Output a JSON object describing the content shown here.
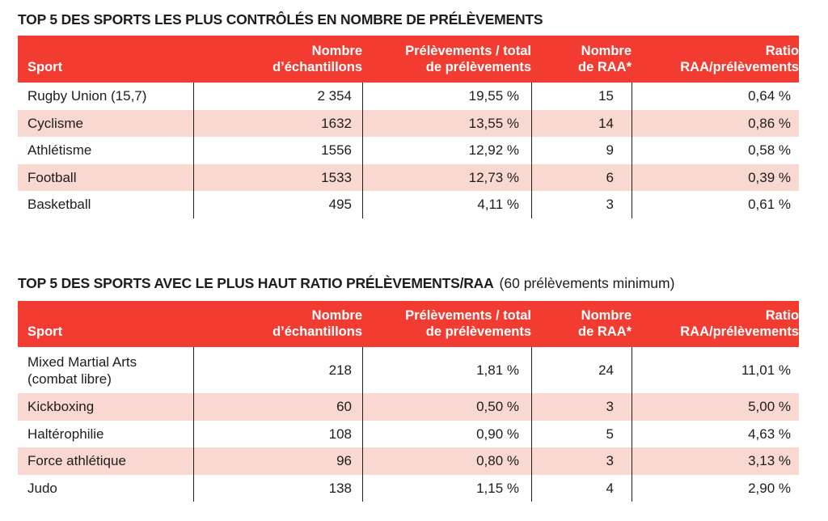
{
  "colors": {
    "header_red": "#f23c31",
    "stripe_pink": "#f9d8d1",
    "text": "#1d1d1b"
  },
  "table1": {
    "title": "TOP 5 DES SPORTS LES PLUS CONTRÔLÉS EN NOMBRE DE PRÉLÈVEMENTS",
    "headers": [
      "Sport",
      "Nombre\nd’échantillons",
      "Prélèvements / total\nde prélèvements",
      "Nombre\nde RAA*",
      "Ratio\nRAA/prélèvements"
    ],
    "rows": [
      {
        "sport": "Rugby Union (15,7)",
        "samples": "2 354",
        "pct": "19,55 %",
        "raa": "15",
        "ratio": "0,64 %"
      },
      {
        "sport": "Cyclisme",
        "samples": "1632",
        "pct": "13,55 %",
        "raa": "14",
        "ratio": "0,86 %"
      },
      {
        "sport": "Athlétisme",
        "samples": "1556",
        "pct": "12,92 %",
        "raa": "9",
        "ratio": "0,58 %"
      },
      {
        "sport": "Football",
        "samples": "1533",
        "pct": "12,73 %",
        "raa": "6",
        "ratio": "0,39 %"
      },
      {
        "sport": "Basketball",
        "samples": "495",
        "pct": "4,11 %",
        "raa": "3",
        "ratio": "0,61 %"
      }
    ]
  },
  "table2": {
    "title_main": "TOP 5 DES SPORTS AVEC LE PLUS HAUT RATIO PRÉLÈVEMENTS/RAA",
    "title_note": "(60 prélèvements minimum)",
    "headers": [
      "Sport",
      "Nombre\nd’échantillons",
      "Prélèvements / total\nde prélèvements",
      "Nombre\nde RAA*",
      "Ratio\nRAA/prélèvements"
    ],
    "rows": [
      {
        "sport": "Mixed Martial Arts\n(combat libre)",
        "samples": "218",
        "pct": "1,81 %",
        "raa": "24",
        "ratio": "11,01 %"
      },
      {
        "sport": "Kickboxing",
        "samples": "60",
        "pct": "0,50 %",
        "raa": "3",
        "ratio": "5,00 %"
      },
      {
        "sport": "Haltérophilie",
        "samples": "108",
        "pct": "0,90 %",
        "raa": "5",
        "ratio": "4,63 %"
      },
      {
        "sport": "Force athlétique",
        "samples": "96",
        "pct": "0,80 %",
        "raa": "3",
        "ratio": "3,13 %"
      },
      {
        "sport": "Judo",
        "samples": "138",
        "pct": "1,15 %",
        "raa": "4",
        "ratio": "2,90 %"
      }
    ]
  }
}
